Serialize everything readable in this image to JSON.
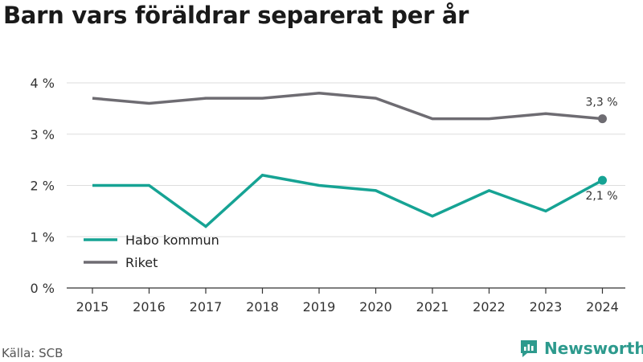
{
  "title": "Barn vars föräldrar separerat per år",
  "source": "Källa: SCB",
  "brand": {
    "name": "Newsworthy",
    "icon": "newsworthy-logo-icon"
  },
  "colors": {
    "habo": "#16a394",
    "riket": "#6e6c72",
    "grid": "#dddddd",
    "axis": "#333333",
    "brand": "#2d9a8d"
  },
  "chart_data": {
    "type": "line",
    "x": [
      "2015",
      "2016",
      "2017",
      "2018",
      "2019",
      "2020",
      "2021",
      "2022",
      "2023",
      "2024"
    ],
    "ylim": [
      0,
      4
    ],
    "y_ticks": [
      0,
      1,
      2,
      3,
      4
    ],
    "y_tick_labels": [
      "0 %",
      "1 %",
      "2 %",
      "3 %",
      "4 %"
    ],
    "grid": true,
    "legend_position": "bottom-left",
    "series": [
      {
        "name": "Habo kommun",
        "color": "#16a394",
        "values": [
          2.0,
          2.0,
          1.2,
          2.2,
          2.0,
          1.9,
          1.4,
          1.9,
          1.5,
          2.1
        ],
        "end_label": "2,1 %"
      },
      {
        "name": "Riket",
        "color": "#6e6c72",
        "values": [
          3.7,
          3.6,
          3.7,
          3.7,
          3.8,
          3.7,
          3.3,
          3.3,
          3.4,
          3.3
        ],
        "end_label": "3,3 %"
      }
    ]
  }
}
